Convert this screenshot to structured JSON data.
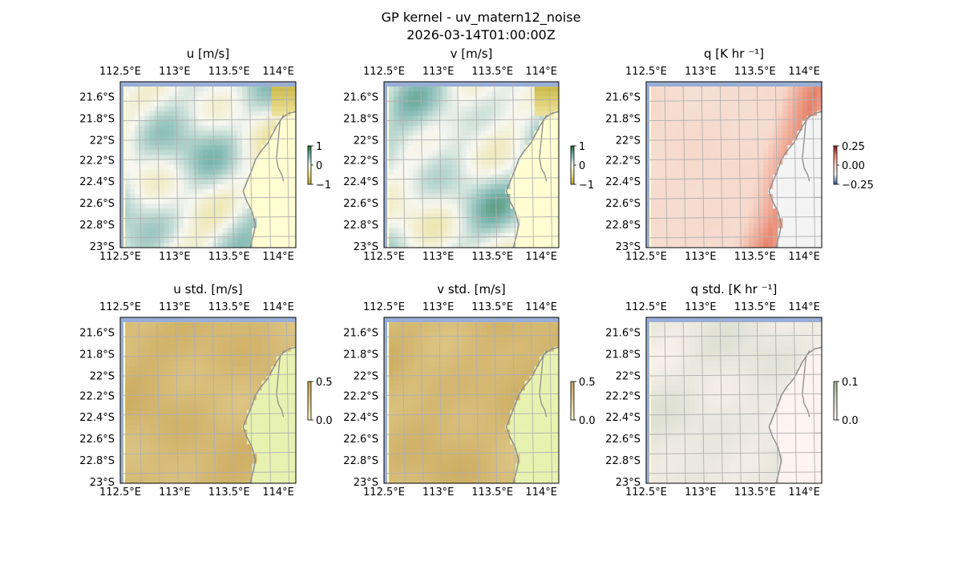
{
  "figure": {
    "title_line1": "GP kernel - uv_matern12_noise",
    "title_line2": "2026-03-14T01:00:00Z"
  },
  "map": {
    "lon_ticks": [
      "112.5°E",
      "113°E",
      "113.5°E",
      "114°E"
    ],
    "lat_ticks": [
      "21.6°S",
      "21.8°S",
      "22°S",
      "22.2°S",
      "22.4°S",
      "22.6°S",
      "22.8°S",
      "23°S"
    ],
    "colors": {
      "ocean": "#98aed8",
      "land": "#fffdd1",
      "coast": "#8c8c8c",
      "grid": "#b0b0b0"
    }
  },
  "chart_data": [
    {
      "type": "heatmap",
      "title": "u [m/s]",
      "cmap": "BrBG-like (gold to green)",
      "colorbar_ticks": [
        "1",
        "0",
        "−1"
      ],
      "range": [
        -1,
        1
      ]
    },
    {
      "type": "heatmap",
      "title": "v [m/s]",
      "cmap": "BrBG-like (gold to green)",
      "colorbar_ticks": [
        "1",
        "0",
        "−1"
      ],
      "range": [
        -1,
        1
      ]
    },
    {
      "type": "heatmap",
      "title": "q [K hr ⁻¹]",
      "cmap": "RdBu_r-like (blue to red)",
      "colorbar_ticks": [
        "0.25",
        "0.00",
        "−0.25"
      ],
      "range": [
        -0.3,
        0.3
      ]
    },
    {
      "type": "heatmap",
      "title": "u std. [m/s]",
      "cmap": "yellow to gold",
      "colorbar_ticks": [
        "0.5",
        "0.0"
      ],
      "range": [
        0,
        0.5
      ]
    },
    {
      "type": "heatmap",
      "title": "v std. [m/s]",
      "cmap": "yellow to gold",
      "colorbar_ticks": [
        "0.5",
        "0.0"
      ],
      "range": [
        0,
        0.5
      ]
    },
    {
      "type": "heatmap",
      "title": "q std. [K hr ⁻¹]",
      "cmap": "pink to green",
      "colorbar_ticks": [
        "0.1",
        "0.0"
      ],
      "range": [
        0,
        0.1
      ]
    }
  ]
}
